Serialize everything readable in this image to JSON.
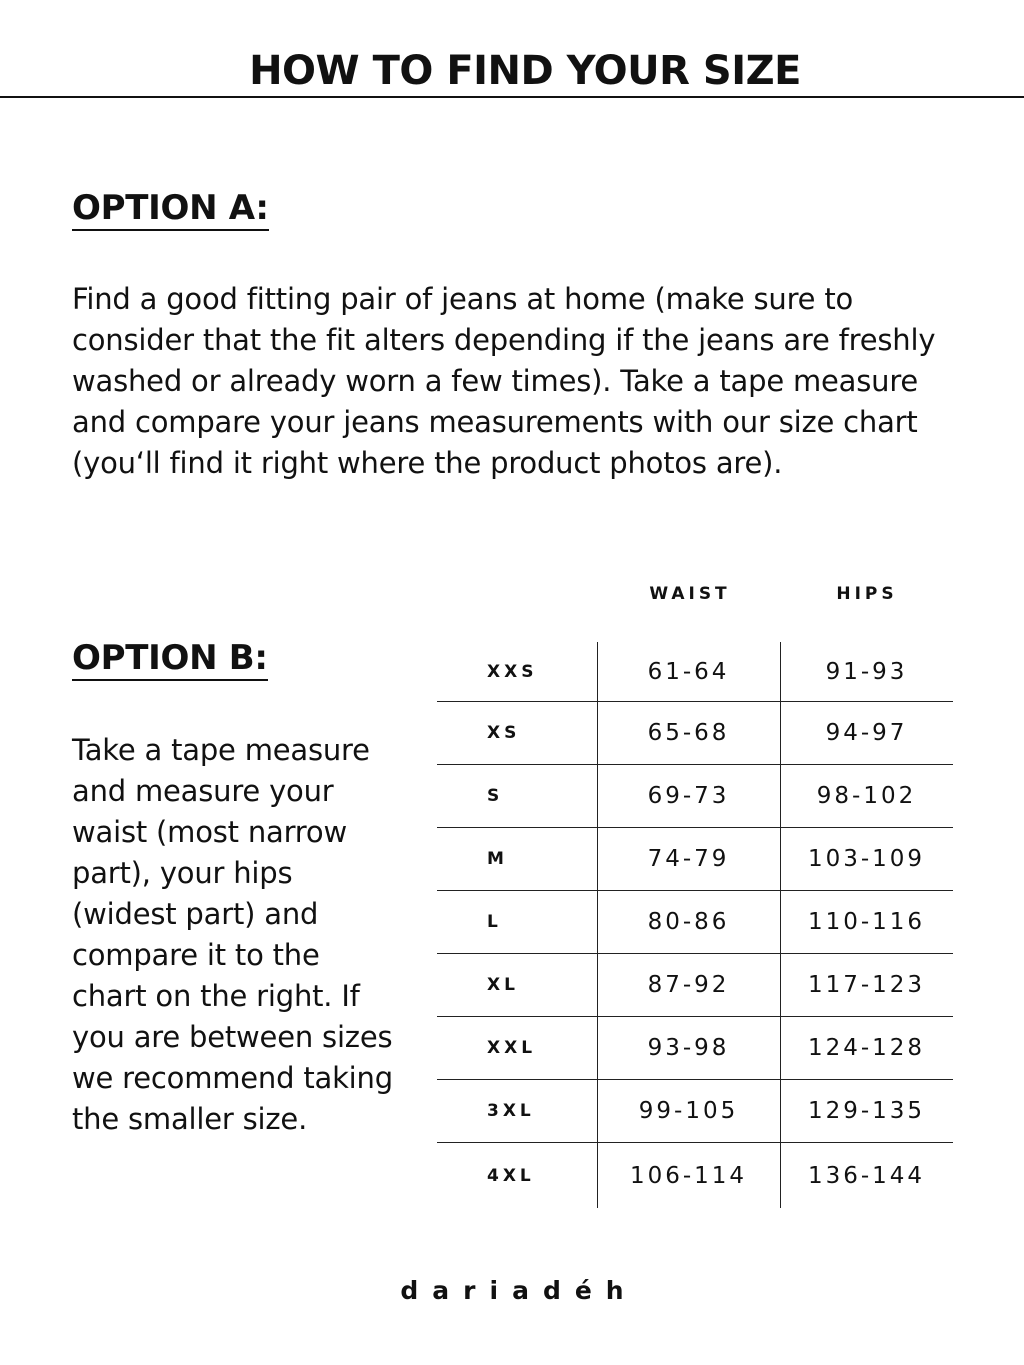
{
  "title": "HOW TO FIND YOUR SIZE",
  "option_a": {
    "heading": "OPTION A:",
    "text": "Find a good fitting pair of jeans at home (make sure to consider that the fit alters depending if the jeans are freshly washed or already worn a few times). Take a tape measure and compare your jeans measurements with our size chart (you‘ll find it right where the product photos are)."
  },
  "option_b": {
    "heading": "OPTION B:",
    "text": "Take a tape measure and measure your waist (most narrow part), your hips (widest part) and compare it to the chart on the right. If you are between sizes we recommend taking the smaller size."
  },
  "size_table": {
    "headers": {
      "waist": "WAIST",
      "hips": "HIPS"
    },
    "rows": [
      {
        "size": "XXS",
        "waist": "61-64",
        "hips": "91-93"
      },
      {
        "size": "XS",
        "waist": "65-68",
        "hips": "94-97"
      },
      {
        "size": "S",
        "waist": "69-73",
        "hips": "98-102"
      },
      {
        "size": "M",
        "waist": "74-79",
        "hips": "103-109"
      },
      {
        "size": "L",
        "waist": "80-86",
        "hips": "110-116"
      },
      {
        "size": "XL",
        "waist": "87-92",
        "hips": "117-123"
      },
      {
        "size": "XXL",
        "waist": "93-98",
        "hips": "124-128"
      },
      {
        "size": "3XL",
        "waist": "99-105",
        "hips": "129-135"
      },
      {
        "size": "4XL",
        "waist": "106-114",
        "hips": "136-144"
      }
    ]
  },
  "brand": "dariadéh"
}
